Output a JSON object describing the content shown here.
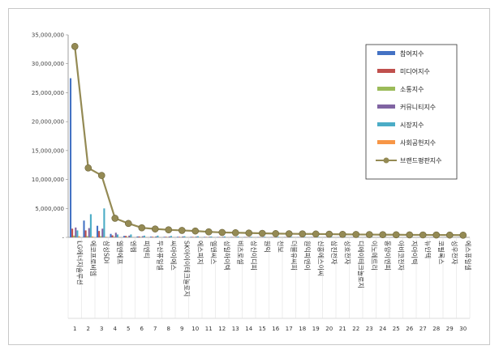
{
  "chart_data": {
    "type": "bar",
    "title": "",
    "xlabel": "",
    "ylabel": "",
    "ylim": [
      0,
      35000000
    ],
    "yticks": [
      "35,000,000",
      "30,000,000",
      "25,000,000",
      "20,000,000",
      "15,000,000",
      "10,000,000",
      "5,000,000",
      "-"
    ],
    "ytick_values": [
      35000000,
      30000000,
      25000000,
      20000000,
      15000000,
      10000000,
      5000000,
      0
    ],
    "grid": false,
    "legend_position": "top-right",
    "categories": [
      "LG에너지솔루션",
      "에코프로비엠",
      "삼성SDI",
      "엘앤에프",
      "엔켐",
      "피엔티",
      "두산퓨얼셀",
      "씨아이에스",
      "SK아이이테크놀로지",
      "에스피지",
      "엘앤씨스",
      "성일하이텍",
      "비츠로셀",
      "상신이디피",
      "원익",
      "천보",
      "더블유씨피",
      "원익피앤이",
      "신흥에스이씨",
      "삼진전자",
      "성호전자",
      "디에이테크놀로지",
      "이노메트리",
      "동양이엔피",
      "아비코전자",
      "지아이텍",
      "뉴인텍",
      "코필록스",
      "성우전자",
      "에스퓨얼셀"
    ],
    "indices": [
      "1",
      "2",
      "3",
      "4",
      "5",
      "6",
      "7",
      "8",
      "9",
      "10",
      "11",
      "12",
      "13",
      "14",
      "15",
      "16",
      "17",
      "18",
      "19",
      "20",
      "21",
      "22",
      "23",
      "24",
      "25",
      "26",
      "27",
      "28",
      "29",
      "30"
    ],
    "series": [
      {
        "name": "참여지수",
        "color": "#4472c4",
        "values": [
          27500000,
          2900000,
          2000000,
          600000,
          250000,
          150000,
          120000,
          100000,
          100000,
          90000,
          80000,
          70000,
          60000,
          60000,
          50000,
          50000,
          40000,
          40000,
          40000,
          30000,
          30000,
          30000,
          20000,
          20000,
          20000,
          20000,
          20000,
          20000,
          20000,
          20000
        ]
      },
      {
        "name": "미디어지수",
        "color": "#c0504d",
        "values": [
          1500000,
          1200000,
          1100000,
          350000,
          250000,
          150000,
          100000,
          100000,
          90000,
          80000,
          70000,
          60000,
          50000,
          50000,
          40000,
          40000,
          40000,
          30000,
          30000,
          30000,
          20000,
          20000,
          20000,
          20000,
          20000,
          20000,
          20000,
          20000,
          20000,
          20000
        ]
      },
      {
        "name": "소통지수",
        "color": "#9bbb59",
        "values": [
          300000,
          200000,
          200000,
          100000,
          80000,
          60000,
          50000,
          50000,
          40000,
          40000,
          40000,
          30000,
          30000,
          30000,
          30000,
          20000,
          20000,
          20000,
          20000,
          20000,
          20000,
          20000,
          20000,
          20000,
          20000,
          20000,
          20000,
          20000,
          20000,
          20000
        ]
      },
      {
        "name": "커뮤니티지수",
        "color": "#8064a2",
        "values": [
          1700000,
          1600000,
          1500000,
          800000,
          300000,
          200000,
          150000,
          150000,
          150000,
          120000,
          100000,
          100000,
          90000,
          80000,
          70000,
          60000,
          60000,
          50000,
          50000,
          50000,
          40000,
          40000,
          40000,
          30000,
          30000,
          30000,
          30000,
          30000,
          30000,
          30000
        ]
      },
      {
        "name": "시장지수",
        "color": "#4bacc6",
        "values": [
          1200000,
          4000000,
          5000000,
          500000,
          500000,
          300000,
          300000,
          250000,
          200000,
          200000,
          150000,
          150000,
          150000,
          100000,
          100000,
          100000,
          100000,
          80000,
          80000,
          80000,
          60000,
          60000,
          60000,
          50000,
          50000,
          50000,
          50000,
          40000,
          40000,
          40000
        ]
      },
      {
        "name": "사회공헌지수",
        "color": "#f79646",
        "values": [
          200000,
          150000,
          100000,
          50000,
          30000,
          20000,
          20000,
          20000,
          20000,
          20000,
          20000,
          20000,
          20000,
          20000,
          20000,
          20000,
          20000,
          20000,
          20000,
          20000,
          20000,
          20000,
          20000,
          20000,
          20000,
          20000,
          20000,
          20000,
          20000,
          20000
        ]
      }
    ],
    "line_series": {
      "name": "브랜드평판지수",
      "color": "#948a54",
      "values": [
        33000000,
        12000000,
        10700000,
        3300000,
        2400000,
        1650000,
        1450000,
        1300000,
        1200000,
        1100000,
        950000,
        850000,
        800000,
        750000,
        700000,
        650000,
        620000,
        600000,
        580000,
        550000,
        520000,
        500000,
        480000,
        460000,
        450000,
        430000,
        420000,
        410000,
        400000,
        380000
      ]
    }
  }
}
